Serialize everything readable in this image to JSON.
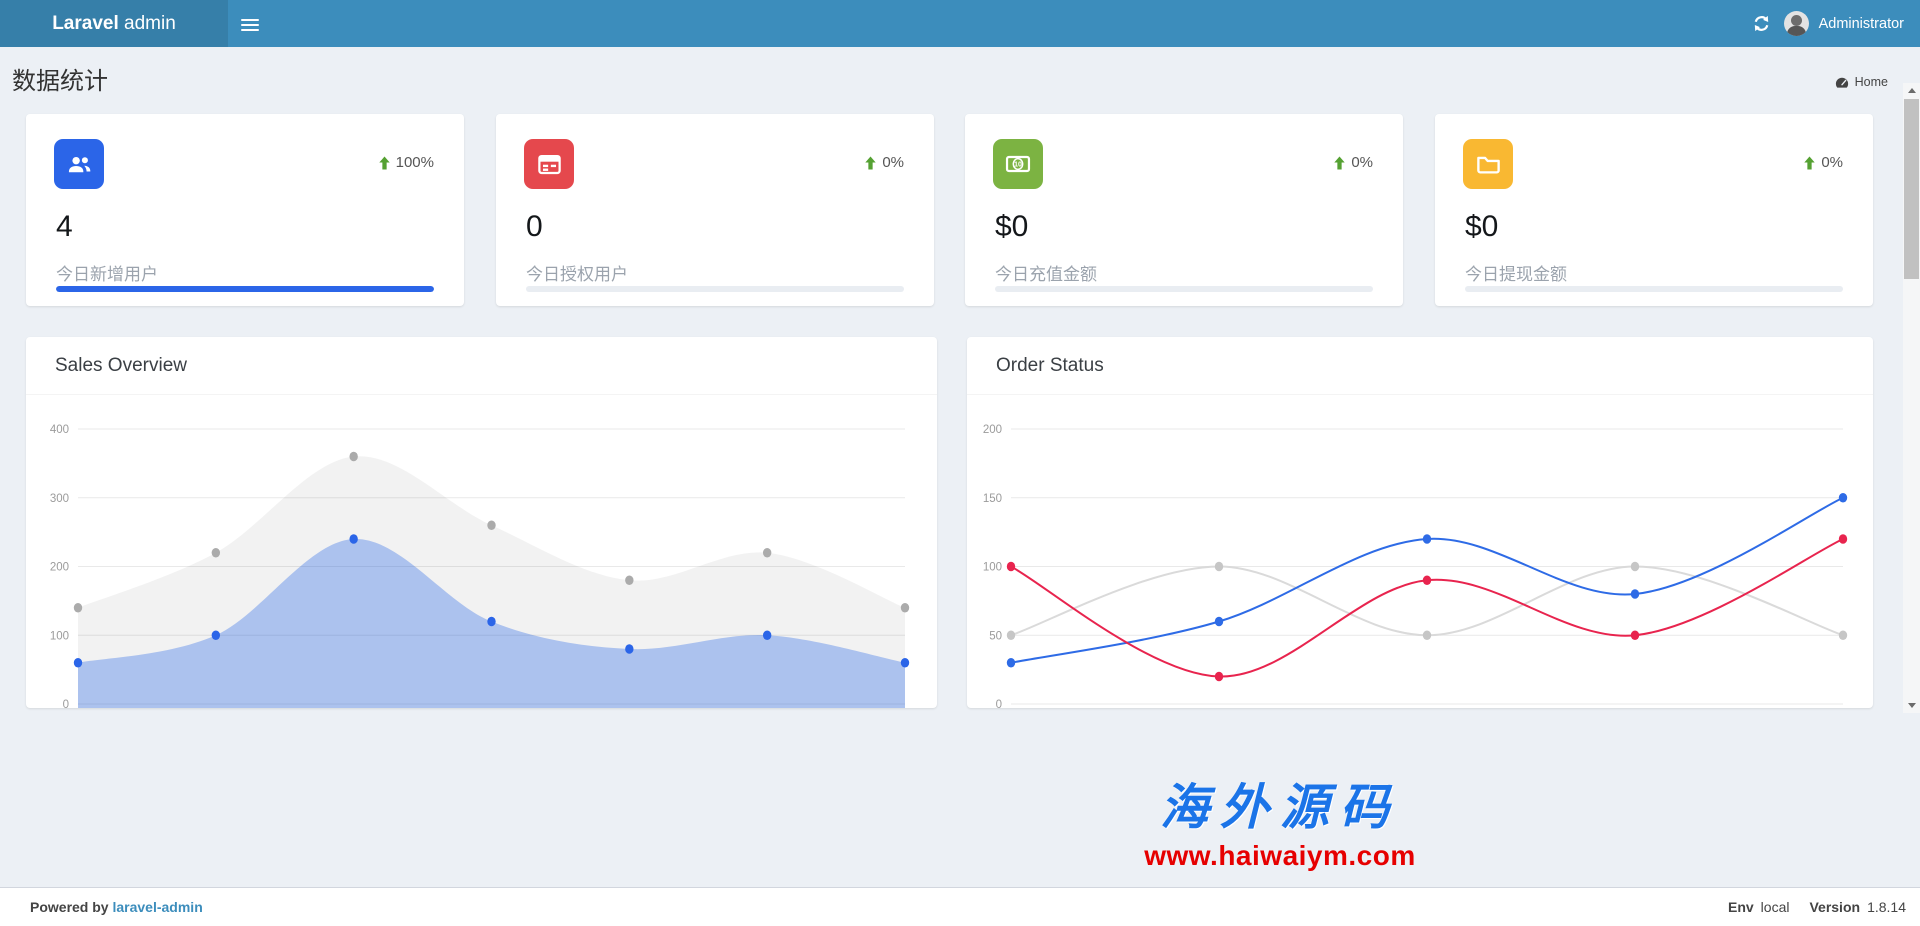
{
  "navbar": {
    "brand_bold": "Laravel",
    "brand_light": " admin",
    "username": "Administrator"
  },
  "header": {
    "title": "数据统计",
    "breadcrumb_home": "Home"
  },
  "stats": [
    {
      "icon": "users-icon",
      "icon_bg": "#2b65e8",
      "value": "4",
      "label": "今日新增用户",
      "trend": "100%",
      "progress_pct": 100,
      "progress_color": "#2b65e8"
    },
    {
      "icon": "id-card-icon",
      "icon_bg": "#e5484d",
      "value": "0",
      "label": "今日授权用户",
      "trend": "0%",
      "progress_pct": 0,
      "progress_color": "#e5484d"
    },
    {
      "icon": "money-icon",
      "icon_bg": "#7cb342",
      "value": "$0",
      "label": "今日充值金额",
      "trend": "0%",
      "progress_pct": 0,
      "progress_color": "#7cb342"
    },
    {
      "icon": "folder-icon",
      "icon_bg": "#f9b832",
      "value": "$0",
      "label": "今日提现金额",
      "trend": "0%",
      "progress_pct": 0,
      "progress_color": "#f9b832"
    }
  ],
  "trend_arrow_color": "#55a132",
  "chart_data": [
    {
      "id": "sales",
      "type": "area",
      "title": "Sales Overview",
      "x": [
        1,
        2,
        3,
        4,
        5,
        6,
        7
      ],
      "xlabel": "",
      "ylabel": "",
      "ylim": [
        0,
        400
      ],
      "yticks": [
        0,
        100,
        200,
        300,
        400
      ],
      "grid": true,
      "legend": "none",
      "series": [
        {
          "name": "gray-series",
          "color": "#ababab",
          "fill": "rgba(0,0,0,0.05)",
          "values": [
            140,
            220,
            360,
            260,
            180,
            220,
            140
          ]
        },
        {
          "name": "blue-series",
          "color": "#2b65e8",
          "fill": "rgba(46,107,230,0.36)",
          "values": [
            60,
            100,
            240,
            120,
            80,
            100,
            60
          ]
        }
      ]
    },
    {
      "id": "order",
      "type": "line",
      "title": "Order Status",
      "x": [
        1,
        2,
        3,
        4,
        5
      ],
      "xlabel": "",
      "ylabel": "",
      "ylim": [
        0,
        200
      ],
      "yticks": [
        0,
        50,
        100,
        150,
        200
      ],
      "grid": true,
      "legend": "none",
      "series": [
        {
          "name": "gray-series",
          "color": "#dadada",
          "dot_color": "#c6c6c6",
          "values": [
            50,
            100,
            50,
            100,
            50
          ]
        },
        {
          "name": "blue-series",
          "color": "#2e6be6",
          "dot_color": "#2e6be6",
          "values": [
            30,
            60,
            120,
            80,
            150
          ]
        },
        {
          "name": "red-series",
          "color": "#e8244e",
          "dot_color": "#e8244e",
          "values": [
            100,
            20,
            90,
            50,
            120
          ]
        }
      ]
    }
  ],
  "watermark": {
    "line1": "海外源码",
    "line2": "www.haiwaiym.com"
  },
  "footer": {
    "powered_by": "Powered by",
    "brand_link": "laravel-admin",
    "env_label": "Env",
    "env_value": "local",
    "version_label": "Version",
    "version_value": "1.8.14"
  }
}
